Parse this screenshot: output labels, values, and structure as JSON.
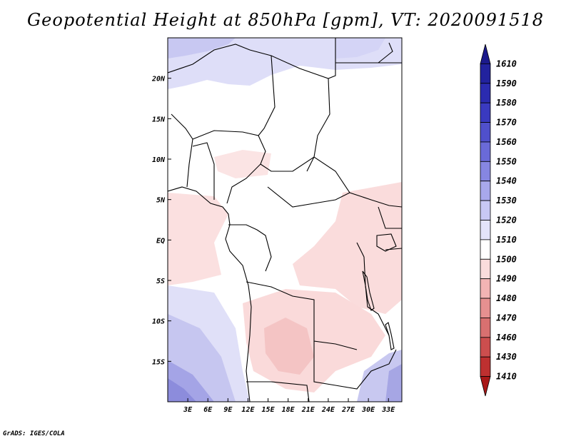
{
  "title": "Geopotential Height at 850hPa [gpm], VT: 2020091518",
  "credit": "GrADS: IGES/COLA",
  "map": {
    "lon_range": [
      0,
      35
    ],
    "lat_range": [
      -20,
      25
    ],
    "lat_ticks": [
      {
        "lat": 20,
        "label": "20N"
      },
      {
        "lat": 15,
        "label": "15N"
      },
      {
        "lat": 10,
        "label": "10N"
      },
      {
        "lat": 5,
        "label": "5N"
      },
      {
        "lat": 0,
        "label": "EQ"
      },
      {
        "lat": -5,
        "label": "5S"
      },
      {
        "lat": -10,
        "label": "10S"
      },
      {
        "lat": -15,
        "label": "15S"
      }
    ],
    "lon_ticks": [
      {
        "lon": 3,
        "label": "3E"
      },
      {
        "lon": 6,
        "label": "6E"
      },
      {
        "lon": 9,
        "label": "9E"
      },
      {
        "lon": 12,
        "label": "12E"
      },
      {
        "lon": 15,
        "label": "15E"
      },
      {
        "lon": 18,
        "label": "18E"
      },
      {
        "lon": 21,
        "label": "21E"
      },
      {
        "lon": 24,
        "label": "24E"
      },
      {
        "lon": 27,
        "label": "27E"
      },
      {
        "lon": 30,
        "label": "30E"
      },
      {
        "lon": 33,
        "label": "33E"
      }
    ]
  },
  "colorbar": {
    "levels": [
      {
        "label": "1610",
        "color": "#1c1a8c"
      },
      {
        "label": "1590",
        "color": "#22229e"
      },
      {
        "label": "1580",
        "color": "#2b2bb0"
      },
      {
        "label": "1570",
        "color": "#3a3ac0"
      },
      {
        "label": "1560",
        "color": "#5050cc"
      },
      {
        "label": "1550",
        "color": "#6a6ad8"
      },
      {
        "label": "1540",
        "color": "#8686e2"
      },
      {
        "label": "1530",
        "color": "#a8a8ec"
      },
      {
        "label": "1520",
        "color": "#c8c8f4"
      },
      {
        "label": "1510",
        "color": "#e4e4fa"
      },
      {
        "label": "1500",
        "color": "#ffffff"
      },
      {
        "label": "1490",
        "color": "#fadcdc"
      },
      {
        "label": "1480",
        "color": "#f2b4b4"
      },
      {
        "label": "1470",
        "color": "#e69090"
      },
      {
        "label": "1460",
        "color": "#d87070"
      },
      {
        "label": "1430",
        "color": "#cc4e4e"
      },
      {
        "label": "1410",
        "color": "#be3030"
      },
      {
        "label": "",
        "color": "#a81818"
      }
    ]
  },
  "field": {
    "blue_regions": [
      {
        "name": "north-sahara",
        "level": "1520"
      },
      {
        "name": "south-atlantic",
        "level": "1530"
      },
      {
        "name": "southwest-corner",
        "level": "1550"
      },
      {
        "name": "southeast-coast",
        "level": "1540"
      }
    ],
    "red_regions": [
      {
        "name": "gulf-of-guinea",
        "level": "1500"
      },
      {
        "name": "east-africa-lakes",
        "level": "1500"
      },
      {
        "name": "angola-zambia",
        "level": "1490"
      },
      {
        "name": "northern-nigeria",
        "level": "1500"
      }
    ]
  }
}
